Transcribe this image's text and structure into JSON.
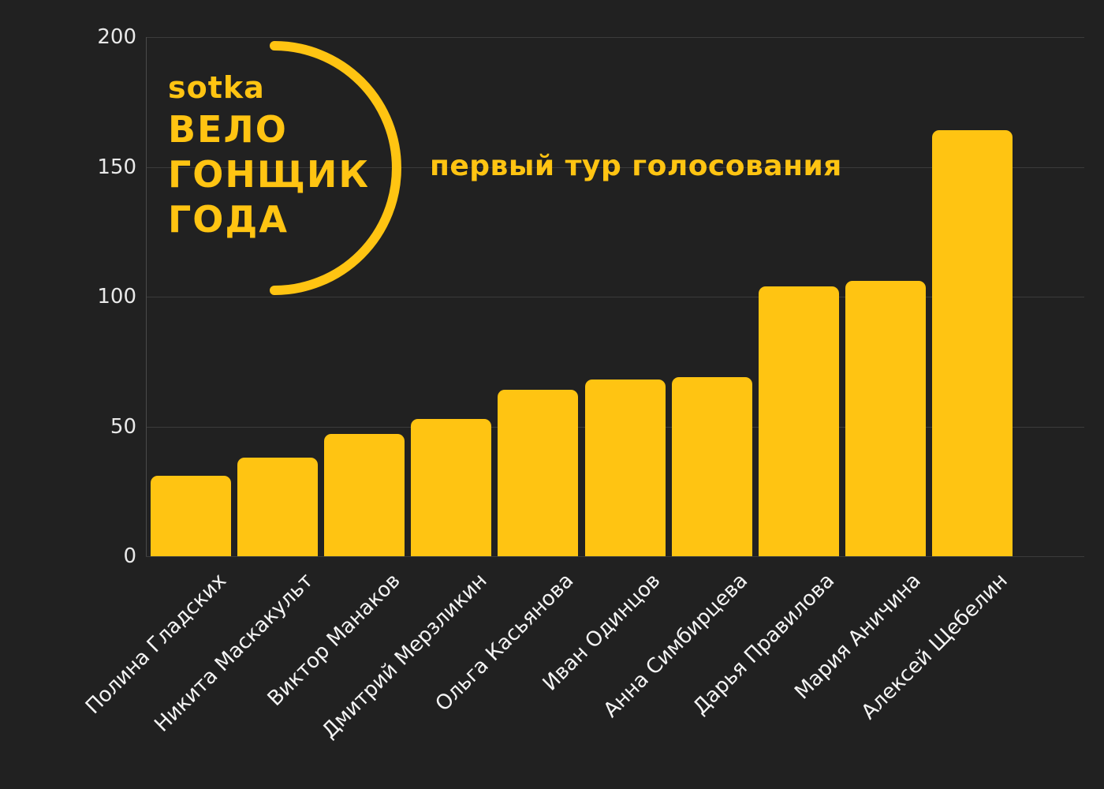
{
  "colors": {
    "background": "#212121",
    "bar": "#FFC412",
    "accent": "#FFC412",
    "grid": "#3b3b3b",
    "axis": "#4a4a4a",
    "tick_label": "#e9e9e9",
    "category_label": "#f4f4f4"
  },
  "logo": {
    "brand": "sotka",
    "line2": "ВЕЛО",
    "line3": "ГОНЩИК",
    "line4": "ГОДА"
  },
  "title": "первый тур голосования",
  "chart_data": {
    "type": "bar",
    "title": "первый тур голосования",
    "categories": [
      "Полина Гладских",
      "Никита Маскакульт",
      "Виктор Манаков",
      "Дмитрий Мерзликин",
      "Ольга Касьянова",
      "Иван Одинцов",
      "Анна Симбирцева",
      "Дарья Правилова",
      "Мария Аничина",
      "Алексей Щебелин"
    ],
    "values": [
      31,
      38,
      47,
      53,
      64,
      68,
      69,
      104,
      106,
      164
    ],
    "xlabel": "",
    "ylabel": "",
    "ylim": [
      0,
      200
    ],
    "yticks": [
      0,
      50,
      100,
      150,
      200
    ],
    "grid": true,
    "legend": "none",
    "bar_color": "#FFC412"
  }
}
